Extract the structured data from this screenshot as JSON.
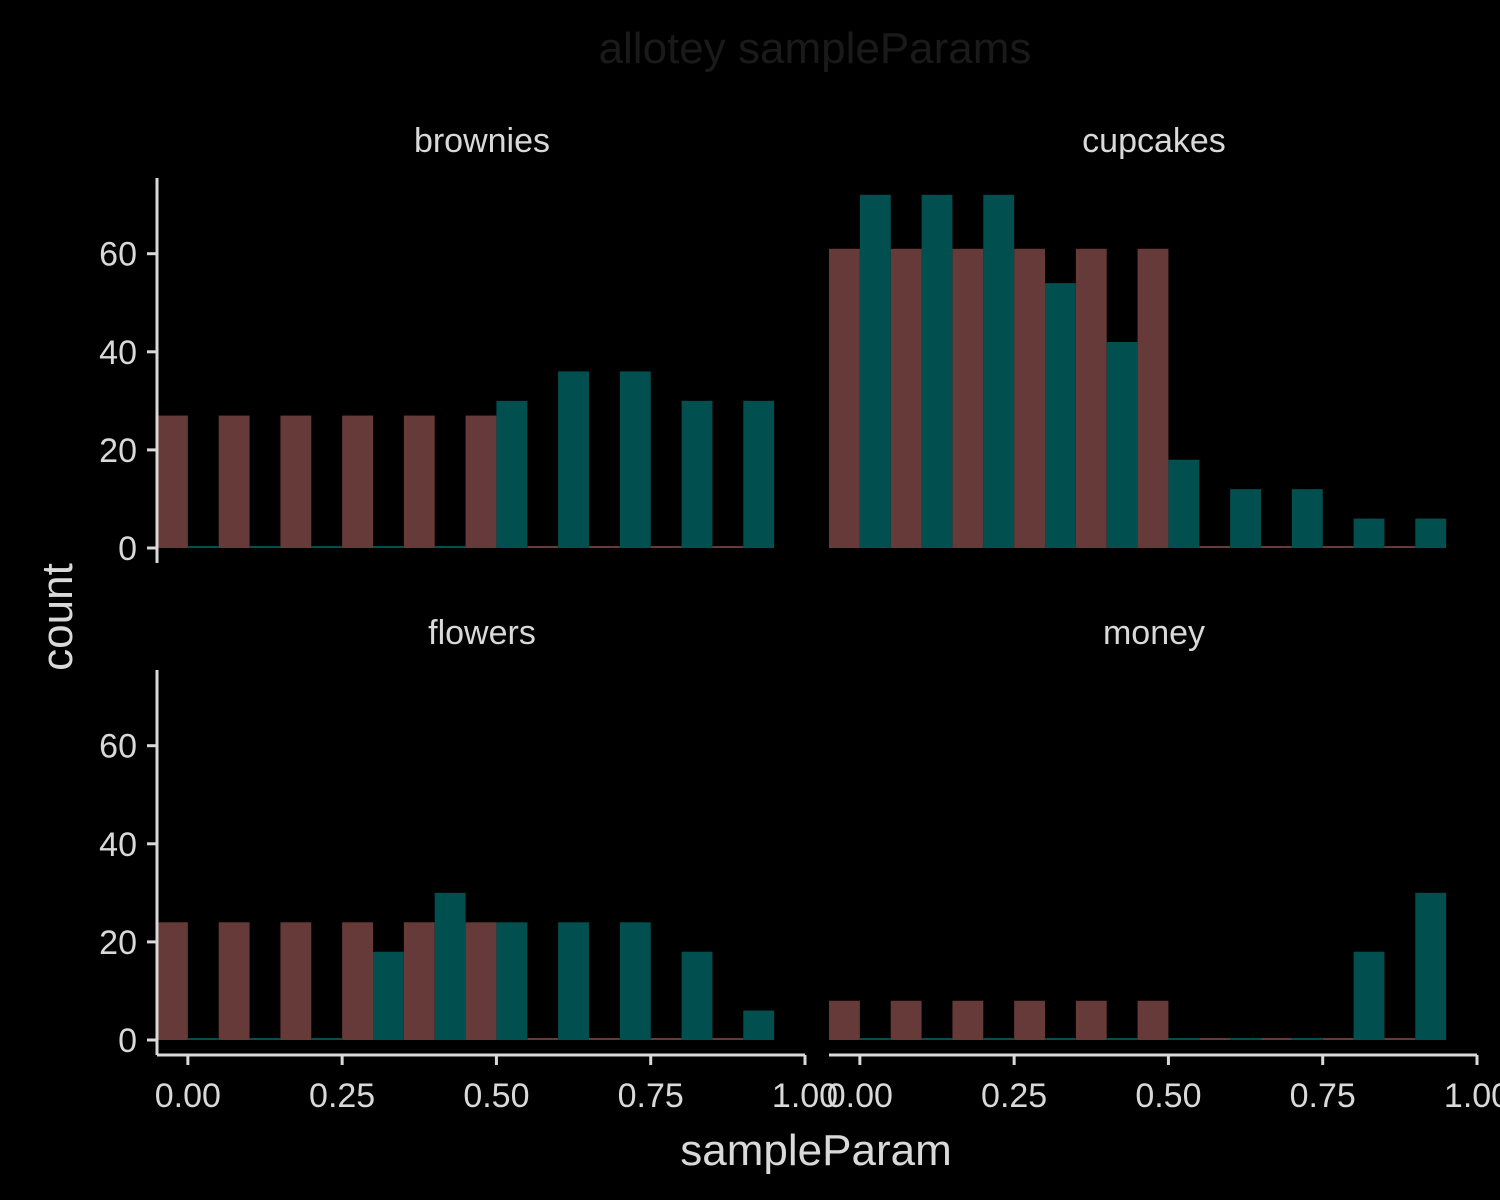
{
  "chart_data": {
    "type": "bar",
    "title": "allotey sampleParams",
    "xlabel": "sampleParam",
    "ylabel": "count",
    "xlim": [
      -0.05,
      1.0
    ],
    "ylim": [
      0,
      75
    ],
    "x_ticks": [
      0.0,
      0.25,
      0.5,
      0.75,
      1.0
    ],
    "x_tick_labels": [
      "0.00",
      "0.25",
      "0.50",
      "0.75",
      "1.00"
    ],
    "y_ticks": [
      0,
      20,
      40,
      60
    ],
    "y_tick_labels": [
      "0",
      "20",
      "40",
      "60"
    ],
    "grid": false,
    "legend": "none",
    "series_colors": [
      "#663a38",
      "#024f50"
    ],
    "bin_centers": [
      0.0,
      0.1,
      0.2,
      0.3,
      0.4,
      0.5,
      0.6,
      0.7,
      0.8,
      0.9
    ],
    "facets": [
      {
        "label": "brownies",
        "series": [
          {
            "values": [
              27,
              27,
              27,
              27,
              27,
              27,
              0,
              0,
              0,
              0
            ]
          },
          {
            "values": [
              0,
              0,
              0,
              0,
              0,
              30,
              36,
              36,
              30,
              30
            ]
          }
        ]
      },
      {
        "label": "cupcakes",
        "series": [
          {
            "values": [
              61,
              61,
              61,
              61,
              61,
              61,
              0,
              0,
              0,
              0
            ]
          },
          {
            "values": [
              72,
              72,
              72,
              54,
              42,
              18,
              12,
              12,
              6,
              6
            ]
          }
        ]
      },
      {
        "label": "flowers",
        "series": [
          {
            "values": [
              24,
              24,
              24,
              24,
              24,
              24,
              0,
              0,
              0,
              0
            ]
          },
          {
            "values": [
              0,
              0,
              0,
              18,
              30,
              24,
              24,
              24,
              18,
              6
            ]
          }
        ]
      },
      {
        "label": "money",
        "series": [
          {
            "values": [
              8,
              8,
              8,
              8,
              8,
              8,
              0,
              0,
              0,
              0
            ]
          },
          {
            "values": [
              0,
              0,
              0,
              0,
              0,
              0,
              0,
              0,
              18,
              30
            ]
          }
        ]
      }
    ]
  }
}
